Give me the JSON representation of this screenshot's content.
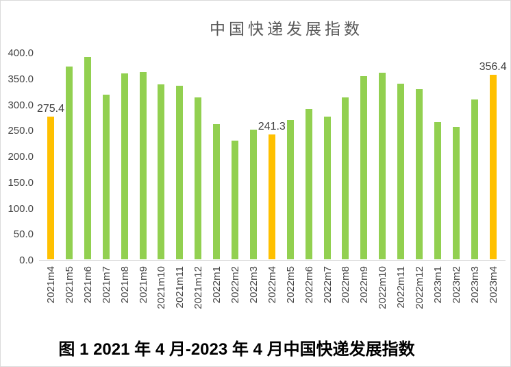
{
  "chart": {
    "title": "中国快递发展指数",
    "caption": "图 1  2021 年 4 月-2023 年 4 月中国快递发展指数"
  },
  "chart_data": {
    "type": "bar",
    "title": "中国快递发展指数",
    "xlabel": "",
    "ylabel": "",
    "ylim": [
      0,
      400
    ],
    "ytick_step": 50,
    "ytick_labels": [
      "400.0",
      "350.0",
      "300.0",
      "250.0",
      "200.0",
      "150.0",
      "100.0",
      "50.0",
      "0.0"
    ],
    "grid": false,
    "legend": "none",
    "categories": [
      "2021m4",
      "2021m5",
      "2021m6",
      "2021m7",
      "2021m8",
      "2021m9",
      "2021m10",
      "2021m11",
      "2021m12",
      "2022m1",
      "2022m2",
      "2022m3",
      "2022m4",
      "2022m5",
      "2022m6",
      "2022m7",
      "2022m8",
      "2022m9",
      "2022m10",
      "2022m11",
      "2022m12",
      "2023m1",
      "2023m2",
      "2023m3",
      "2023m4"
    ],
    "values": [
      275.4,
      372,
      391,
      318,
      359,
      362,
      338,
      335,
      313,
      261,
      229,
      250,
      241.3,
      269,
      290,
      276,
      312,
      354,
      360,
      339,
      328,
      265,
      255,
      309,
      356.4
    ],
    "bar_color": "#92D050",
    "highlight_color": "#FFC000",
    "highlight_indices": [
      0,
      12,
      24
    ],
    "value_labels": [
      {
        "index": 0,
        "text": "275.4"
      },
      {
        "index": 12,
        "text": "241.3"
      },
      {
        "index": 24,
        "text": "356.4"
      }
    ]
  }
}
